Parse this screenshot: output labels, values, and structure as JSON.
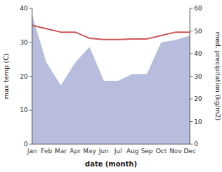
{
  "chart_data": {
    "type": "line",
    "xlabel": "date (month)",
    "ylabel": "max temp (C)",
    "y2label": "med. precipitation (kg/m2)",
    "categories": [
      "Jan",
      "Feb",
      "Mar",
      "Apr",
      "May",
      "Jun",
      "Jul",
      "Aug",
      "Sep",
      "Oct",
      "Nov",
      "Dec"
    ],
    "series": [
      {
        "type": "area",
        "axis": "y2",
        "color": "#b8bcdd",
        "values": [
          57,
          36,
          26,
          36,
          43,
          28,
          28,
          31,
          31,
          45,
          46,
          48
        ]
      },
      {
        "type": "line",
        "color": "#cc5555",
        "values": [
          35.0,
          34.0,
          33.0,
          33.0,
          31.2,
          30.8,
          30.8,
          31.0,
          31.0,
          32.0,
          33.0,
          33.0
        ]
      }
    ],
    "ylim": [
      0,
      40
    ],
    "yticks": [
      0,
      10,
      20,
      30,
      40
    ],
    "y2lim": [
      0,
      60
    ],
    "y2ticks": [
      0,
      10,
      20,
      30,
      40,
      50,
      60
    ],
    "grid": false
  }
}
